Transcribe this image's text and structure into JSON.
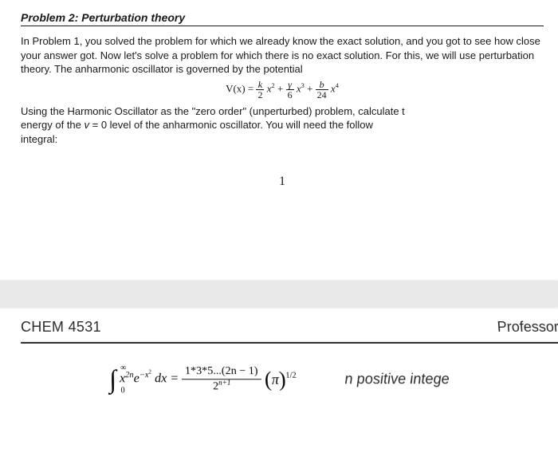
{
  "problem": {
    "title": "Problem 2: Perturbation theory",
    "para1": "In Problem 1, you solved the problem for which we already know the exact solution, and you got to see how close your answer got. Now let's solve a problem for which there is no exact solution. For this, we will use perturbation theory. The anharmonic oscillator is governed by the potential",
    "potential": {
      "lhs": "V(x) =",
      "t1_num": "k",
      "t1_den": "2",
      "t1_var": "x",
      "t1_pow": "2",
      "plus1": "+",
      "t2_num": "γ",
      "t2_den": "6",
      "t2_var": "x",
      "t2_pow": "3",
      "plus2": "+",
      "t3_num": "b",
      "t3_den": "24",
      "t3_var": "x",
      "t3_pow": "4"
    },
    "para2_a": "Using the Harmonic Oscillator as the \"zero order\" (unperturbed) problem, calculate t",
    "para2_b": "energy of the ",
    "para2_v": "v",
    "para2_eq": " = 0 level of the anharmonic oscillator. You will need the follow",
    "para2_c": "integral:",
    "one": "1"
  },
  "footer": {
    "course": "CHEM 4531",
    "right": "Professor"
  },
  "integral": {
    "int_sym": "∫",
    "upper": "∞",
    "lower": "0",
    "integrand_a": "x",
    "integrand_pow": "2n",
    "integrand_b": "e",
    "integrand_bpow": "−x",
    "integrand_bpow2": "2",
    "dx": " dx =",
    "num": "1*3*5...(2n − 1)",
    "den_a": "2",
    "den_pow": "n+1",
    "paren_in": "π",
    "paren_pow": "1/2",
    "note": "n positive intege"
  },
  "colors": {
    "text": "#1a1a1a",
    "band": "#e9e9e9",
    "footer_text": "#2a2a2a"
  }
}
